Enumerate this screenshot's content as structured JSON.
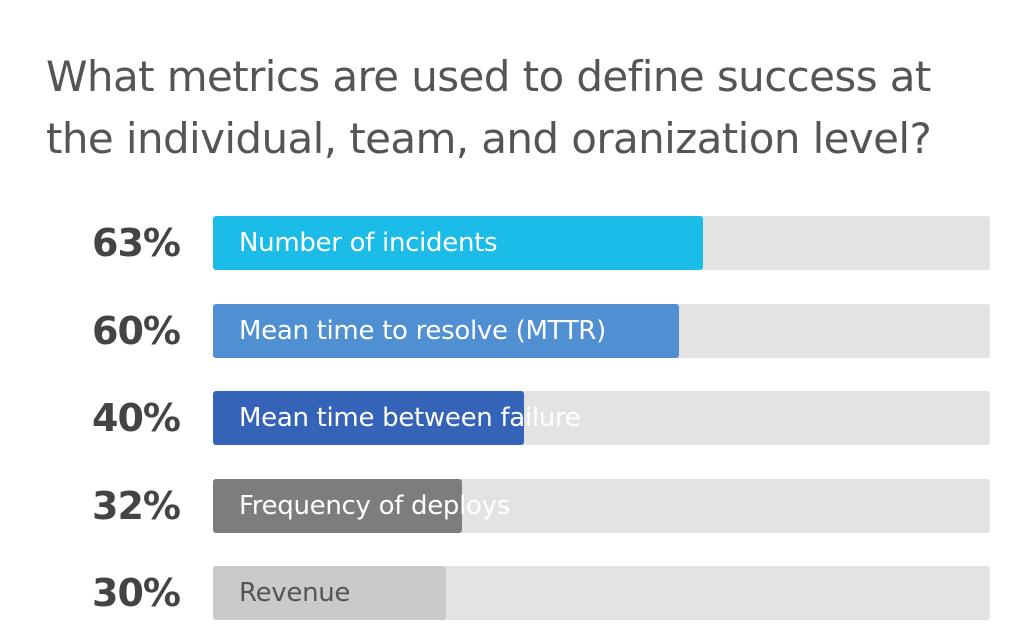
{
  "title": "What metrics are used to define success at the individual, team, and oranization level?",
  "chart_data": {
    "type": "bar",
    "orientation": "horizontal",
    "title": "What metrics are used to define success at the individual, team, and oranization level?",
    "categories": [
      "Number of incidents",
      "Mean time to resolve (MTTR)",
      "Mean time between failure",
      "Frequency of deploys",
      "Revenue"
    ],
    "values": [
      63,
      60,
      40,
      32,
      30
    ],
    "value_labels": [
      "63%",
      "60%",
      "40%",
      "32%",
      "30%"
    ],
    "unit": "%",
    "xlim": [
      0,
      100
    ],
    "bar_colors": [
      "#1bbde8",
      "#4f8fd2",
      "#3563b8",
      "#7d7d7d",
      "#cacaca"
    ],
    "label_colors": [
      "#ffffff",
      "#ffffff",
      "#ffffff",
      "#ffffff",
      "#555555"
    ],
    "track_color": "#e3e3e3",
    "grid": false,
    "legend": "none"
  }
}
